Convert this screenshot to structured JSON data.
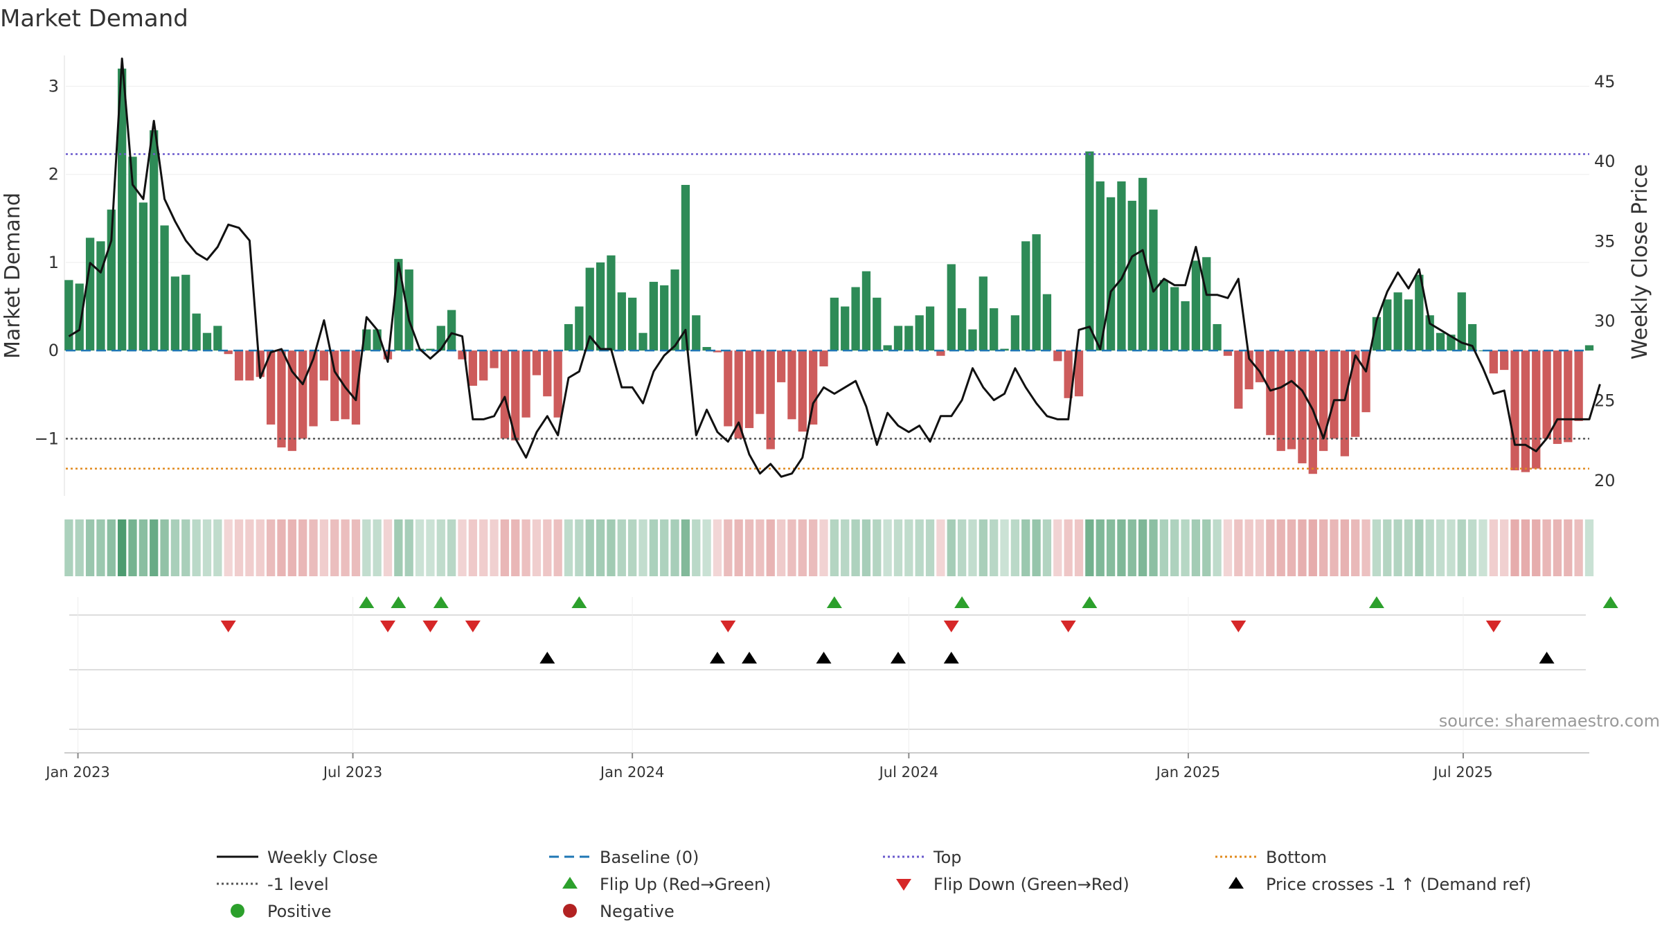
{
  "chart_data": {
    "type": "bar",
    "title": "Market Demand",
    "ylabel": "Market Demand",
    "y2label": "Weekly Close Price",
    "ylim": [
      -1.65,
      3.35
    ],
    "y2lim": [
      19.0,
      46.6
    ],
    "yticks": [
      3,
      2,
      1,
      0,
      -1
    ],
    "yticklabels": [
      "3",
      "2",
      "1",
      "0",
      "−1"
    ],
    "y2ticks": [
      45,
      40,
      35,
      30,
      25,
      20
    ],
    "reference_lines": {
      "top": 2.23,
      "bottom": -1.34,
      "minus_one": -1.0,
      "baseline": 0
    },
    "x_range": [
      "2022-12-24",
      "2025-09-22"
    ],
    "x_ticks": [
      {
        "date": "2023-01-01",
        "label": "Jan 2023"
      },
      {
        "date": "2023-07-01",
        "label": "Jul 2023"
      },
      {
        "date": "2024-01-01",
        "label": "Jan 2024"
      },
      {
        "date": "2024-07-01",
        "label": "Jul 2024"
      },
      {
        "date": "2025-01-01",
        "label": "Jan 2025"
      },
      {
        "date": "2025-07-01",
        "label": "Jul 2025"
      }
    ],
    "start_date": "2022-12-26",
    "interval_days": 7,
    "demand": [
      0.8,
      0.76,
      1.28,
      1.24,
      1.6,
      3.2,
      2.2,
      1.68,
      2.5,
      1.42,
      0.84,
      0.86,
      0.42,
      0.2,
      0.28,
      -0.04,
      -0.34,
      -0.34,
      -0.3,
      -0.84,
      -1.1,
      -1.14,
      -1.0,
      -0.86,
      -0.34,
      -0.8,
      -0.78,
      -0.84,
      0.24,
      0.24,
      -0.1,
      1.04,
      0.92,
      0.02,
      0.02,
      0.28,
      0.46,
      -0.1,
      -0.4,
      -0.34,
      -0.2,
      -1.0,
      -1.02,
      -0.76,
      -0.28,
      -0.52,
      -0.76,
      0.3,
      0.5,
      0.94,
      1.0,
      1.08,
      0.66,
      0.6,
      0.2,
      0.78,
      0.74,
      0.92,
      1.88,
      0.4,
      0.04,
      -0.02,
      -0.86,
      -1.0,
      -0.88,
      -0.72,
      -1.12,
      -0.36,
      -0.78,
      -0.92,
      -0.84,
      -0.18,
      0.6,
      0.5,
      0.72,
      0.9,
      0.6,
      0.06,
      0.28,
      0.28,
      0.4,
      0.5,
      -0.06,
      0.98,
      0.48,
      0.24,
      0.84,
      0.48,
      0.02,
      0.4,
      1.24,
      1.32,
      0.64,
      -0.12,
      -0.54,
      -0.52,
      2.26,
      1.92,
      1.74,
      1.92,
      1.7,
      1.96,
      1.6,
      0.8,
      0.72,
      0.56,
      1.02,
      1.06,
      0.3,
      -0.06,
      -0.66,
      -0.44,
      -0.36,
      -0.96,
      -1.14,
      -1.12,
      -1.28,
      -1.4,
      -1.14,
      -1.0,
      -1.2,
      -0.98,
      -0.7,
      0.38,
      0.58,
      0.66,
      0.58,
      0.86,
      0.4,
      0.2,
      0.18,
      0.66,
      0.3,
      0.0,
      -0.26,
      -0.22,
      -1.36,
      -1.38,
      -1.34,
      -1.0,
      -1.06,
      -1.04,
      -0.8,
      0.06
    ],
    "weekly_close": [
      29.0,
      29.4,
      33.6,
      33.0,
      35.0,
      46.4,
      38.5,
      37.6,
      42.5,
      37.6,
      36.2,
      35.0,
      34.2,
      33.8,
      34.6,
      36.0,
      35.8,
      35.0,
      26.4,
      28.0,
      28.2,
      26.8,
      26.0,
      27.6,
      30.0,
      26.8,
      25.8,
      25.0,
      30.2,
      29.4,
      27.4,
      33.6,
      30.0,
      28.2,
      27.6,
      28.2,
      29.2,
      29.0,
      23.8,
      23.8,
      24.0,
      25.2,
      22.6,
      21.4,
      23.0,
      24.0,
      22.8,
      26.4,
      26.8,
      29.0,
      28.2,
      28.2,
      25.8,
      25.8,
      24.8,
      26.8,
      27.8,
      28.4,
      29.4,
      22.8,
      24.4,
      23.0,
      22.4,
      23.6,
      21.6,
      20.4,
      21.0,
      20.2,
      20.4,
      21.4,
      24.8,
      25.8,
      25.4,
      25.8,
      26.2,
      24.6,
      22.2,
      24.2,
      23.4,
      23.0,
      23.4,
      22.4,
      24.0,
      24.0,
      25.0,
      27.0,
      25.8,
      25.0,
      25.4,
      27.0,
      25.8,
      24.8,
      24.0,
      23.8,
      23.8,
      29.4,
      29.6,
      28.2,
      31.8,
      32.6,
      34.0,
      34.4,
      31.8,
      32.6,
      32.2,
      32.2,
      34.6,
      31.6,
      31.6,
      31.4,
      32.6,
      27.6,
      26.8,
      25.6,
      25.8,
      26.2,
      25.6,
      24.4,
      22.6,
      25.0,
      25.0,
      27.8,
      26.8,
      30.0,
      31.8,
      33.0,
      32.0,
      33.2,
      29.8,
      29.4,
      29.0,
      28.6,
      28.4,
      27.0,
      25.4,
      25.6,
      22.2,
      22.2,
      21.8,
      22.6,
      23.8,
      23.8,
      23.8,
      23.8,
      26.0
    ],
    "flip_up_weeks": [
      28,
      31,
      35,
      48,
      72,
      84,
      96,
      123,
      145
    ],
    "flip_down_weeks": [
      15,
      30,
      34,
      38,
      62,
      83,
      94,
      110,
      134
    ],
    "price_cross_weeks": [
      45,
      61,
      64,
      71,
      78,
      83,
      139
    ],
    "source_text": "source: sharemaestro.com",
    "legend": [
      {
        "label": "Weekly Close",
        "type": "line",
        "color": "#111111"
      },
      {
        "label": "Baseline (0)",
        "type": "dashed",
        "color": "#1f77b4"
      },
      {
        "label": "Top",
        "type": "dotted",
        "color": "#6a5acd"
      },
      {
        "label": "Bottom",
        "type": "dotted",
        "color": "#e08a1e"
      },
      {
        "label": "-1 level",
        "type": "dotted",
        "color": "#555555"
      },
      {
        "label": "Flip Up (Red→Green)",
        "type": "tri-up",
        "color": "#2ca02c"
      },
      {
        "label": "Flip Down (Green→Red)",
        "type": "tri-down",
        "color": "#d62728"
      },
      {
        "label": "Price crosses -1 ↑ (Demand ref)",
        "type": "tri-up",
        "color": "#000000"
      },
      {
        "label": "Positive",
        "type": "dot",
        "color": "#2ca02c"
      },
      {
        "label": "Negative",
        "type": "dot",
        "color": "#b22222"
      }
    ],
    "colors": {
      "positive": "#2e8b57",
      "negative": "#cd5c5c",
      "line": "#111111"
    }
  }
}
